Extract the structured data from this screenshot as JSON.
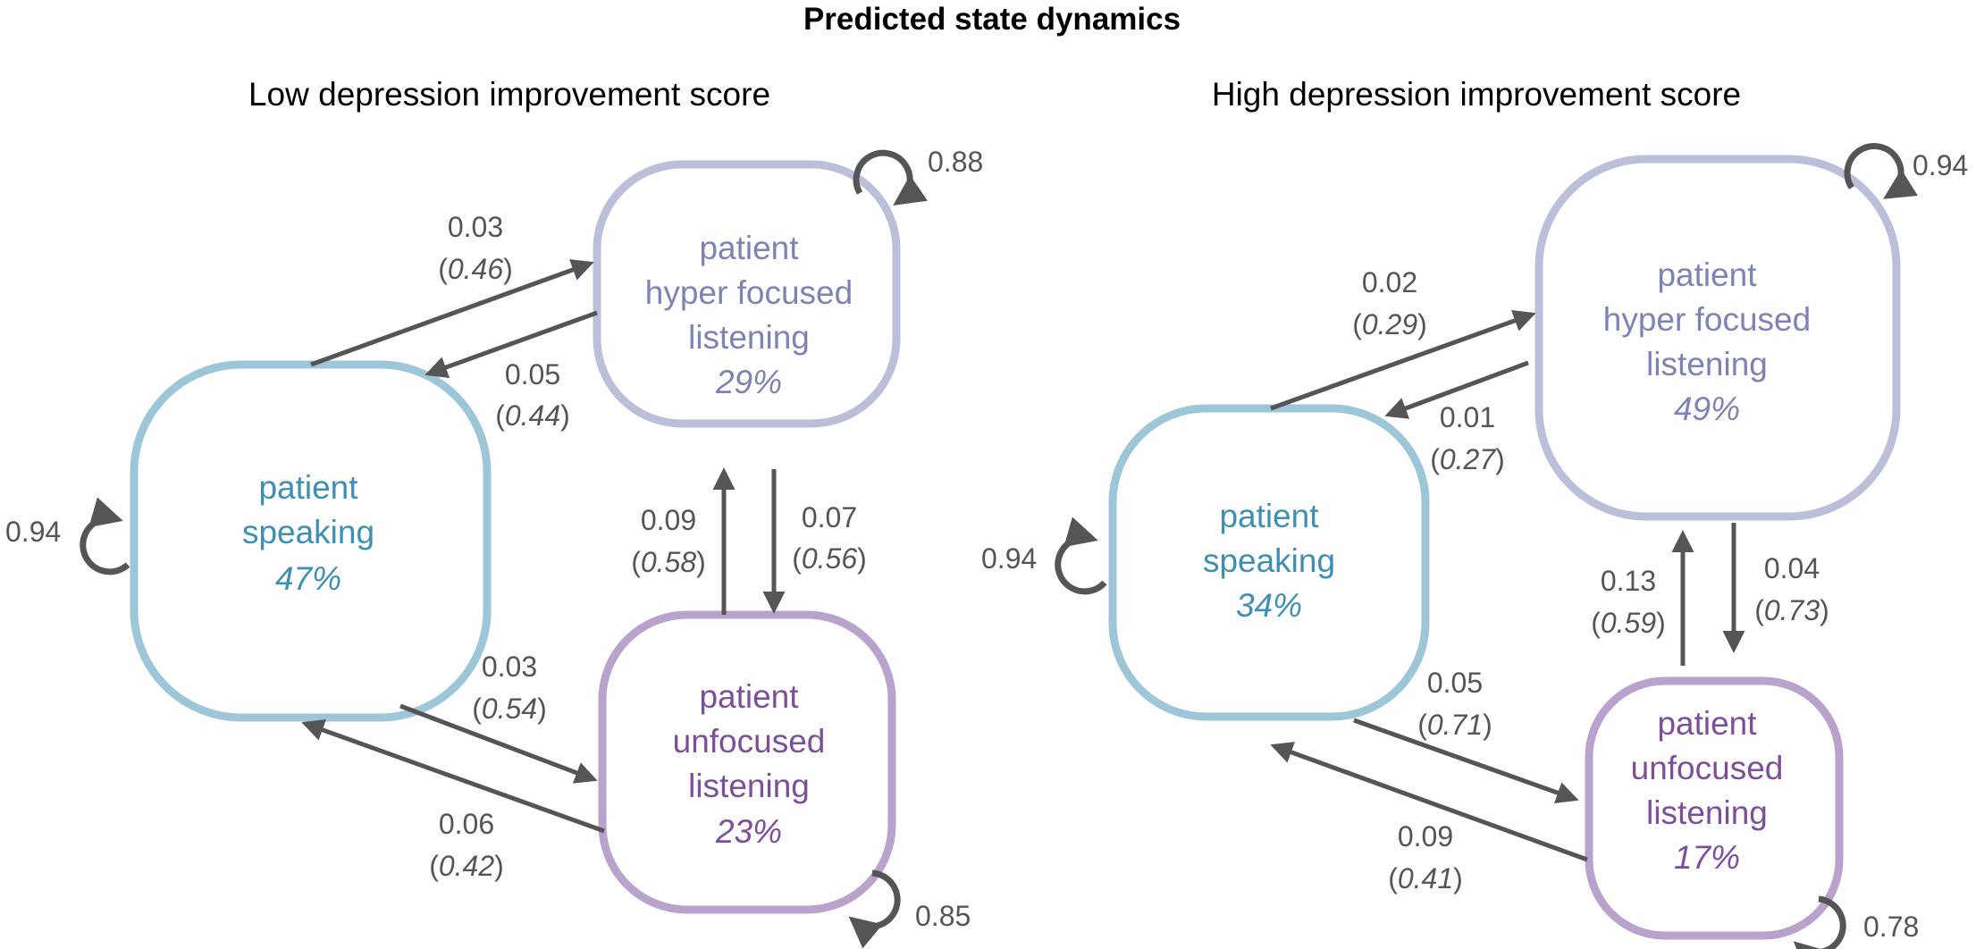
{
  "title": "Predicted state dynamics",
  "colors": {
    "speaking": "#9dc6d9",
    "speaking_text": "#3f8fb3",
    "hyper": "#bcbfd9",
    "hyper_text": "#7f83b3",
    "unfocused": "#b9a2cc",
    "unfocused_text": "#7d4f9a",
    "arrow": "#555555"
  },
  "panels": [
    {
      "subtitle": "Low depression improvement score",
      "nodes": {
        "speaking": {
          "line1": "patient",
          "line2": "speaking",
          "pct": "47%"
        },
        "hyper": {
          "line1": "patient",
          "line2": "hyper focused",
          "line3": "listening",
          "pct": "29%"
        },
        "unfocused": {
          "line1": "patient",
          "line2": "unfocused",
          "line3": "listening",
          "pct": "23%"
        }
      },
      "self_loops": {
        "hyper": "0.88",
        "speaking": "0.94",
        "unfocused": "0.85"
      },
      "transitions": {
        "speaking_to_hyper": {
          "value": "0.03",
          "sub": "0.46"
        },
        "hyper_to_speaking": {
          "value": "0.05",
          "sub": "0.44"
        },
        "unfocused_to_hyper": {
          "value": "0.09",
          "sub": "0.58"
        },
        "hyper_to_unfocused": {
          "value": "0.07",
          "sub": "0.56"
        },
        "speaking_to_unfocused": {
          "value": "0.03",
          "sub": "0.54"
        },
        "unfocused_to_speaking": {
          "value": "0.06",
          "sub": "0.42"
        }
      }
    },
    {
      "subtitle": "High depression improvement score",
      "nodes": {
        "speaking": {
          "line1": "patient",
          "line2": "speaking",
          "pct": "34%"
        },
        "hyper": {
          "line1": "patient",
          "line2": "hyper focused",
          "line3": "listening",
          "pct": "49%"
        },
        "unfocused": {
          "line1": "patient",
          "line2": "unfocused",
          "line3": "listening",
          "pct": "17%"
        }
      },
      "self_loops": {
        "hyper": "0.94",
        "speaking": "0.94",
        "unfocused": "0.78"
      },
      "transitions": {
        "speaking_to_hyper": {
          "value": "0.02",
          "sub": "0.29"
        },
        "hyper_to_speaking": {
          "value": "0.01",
          "sub": "0.27"
        },
        "unfocused_to_hyper": {
          "value": "0.13",
          "sub": "0.59"
        },
        "hyper_to_unfocused": {
          "value": "0.04",
          "sub": "0.73"
        },
        "speaking_to_unfocused": {
          "value": "0.05",
          "sub": "0.71"
        },
        "unfocused_to_speaking": {
          "value": "0.09",
          "sub": "0.41"
        }
      }
    }
  ]
}
